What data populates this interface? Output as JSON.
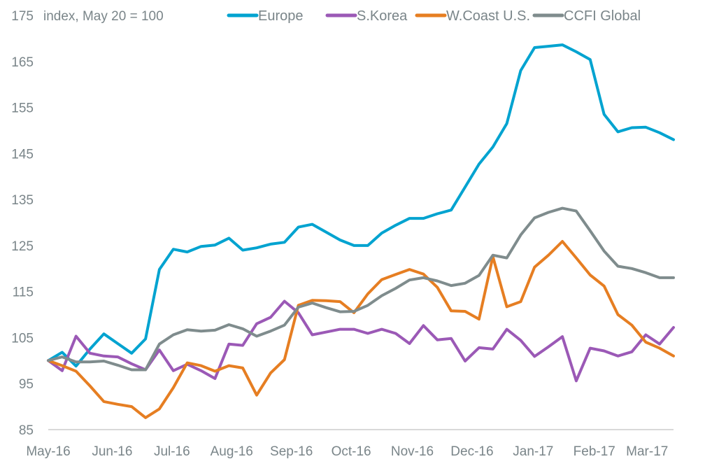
{
  "chart_data": {
    "type": "line",
    "title": "",
    "unit_label": "index, May 20 = 100",
    "xlabel": "",
    "ylabel": "index, May 20 = 100",
    "ylim": [
      85,
      175
    ],
    "yticks": [
      85,
      95,
      105,
      115,
      125,
      135,
      145,
      155,
      165,
      175
    ],
    "x_count": 46,
    "x_ticks": [
      {
        "label": "May-16",
        "index": 0
      },
      {
        "label": "Jun-16",
        "index": 4.6
      },
      {
        "label": "Jul-16",
        "index": 8.9
      },
      {
        "label": "Aug-16",
        "index": 13.2
      },
      {
        "label": "Sep-16",
        "index": 17.5
      },
      {
        "label": "Oct-16",
        "index": 21.8
      },
      {
        "label": "Nov-16",
        "index": 26.2
      },
      {
        "label": "Dec-16",
        "index": 30.5
      },
      {
        "label": "Jan-17",
        "index": 34.9
      },
      {
        "label": "Feb-17",
        "index": 39.3
      },
      {
        "label": "Mar-17",
        "index": 43.1
      }
    ],
    "grid": false,
    "legend_position": "top",
    "series": [
      {
        "name": "Europe",
        "color": "#00a3d0",
        "values": [
          100,
          101.8,
          98.8,
          102.5,
          105.8,
          103.7,
          101.6,
          104.7,
          119.8,
          124.2,
          123.6,
          124.8,
          125.1,
          126.6,
          124.0,
          124.5,
          125.3,
          125.7,
          129.0,
          129.6,
          127.9,
          126.2,
          125.0,
          125.0,
          127.7,
          129.4,
          130.9,
          130.9,
          131.9,
          132.7,
          137.7,
          142.7,
          146.4,
          151.5,
          163.0,
          168.0,
          168.3,
          168.6,
          167.1,
          165.4,
          153.5,
          149.7,
          150.6,
          150.7,
          149.5,
          148.0
        ]
      },
      {
        "name": "S.Korea",
        "color": "#9b59b6",
        "values": [
          100,
          97.8,
          105.3,
          101.6,
          101.0,
          100.8,
          99.3,
          98.0,
          102.3,
          97.8,
          99.2,
          97.8,
          96.1,
          103.6,
          103.3,
          108.0,
          109.4,
          112.9,
          110.4,
          105.6,
          106.2,
          106.8,
          106.8,
          105.9,
          106.8,
          105.9,
          103.7,
          107.6,
          104.5,
          104.8,
          99.9,
          102.8,
          102.5,
          106.8,
          104.4,
          100.9,
          103.0,
          105.2,
          95.6,
          102.7,
          102.1,
          101.0,
          101.9,
          105.6,
          103.6,
          107.2
        ]
      },
      {
        "name": "W.Coast U.S.",
        "color": "#e67e22",
        "values": [
          100,
          98.9,
          97.7,
          94.5,
          91.1,
          90.5,
          90.0,
          87.6,
          89.5,
          94.1,
          99.5,
          98.9,
          97.7,
          98.9,
          98.4,
          92.5,
          97.3,
          100.2,
          112.0,
          113.1,
          113.0,
          112.8,
          110.4,
          114.5,
          117.6,
          118.7,
          119.8,
          118.8,
          115.9,
          110.8,
          110.7,
          109.0,
          122.6,
          111.7,
          112.8,
          120.3,
          122.9,
          125.9,
          122.3,
          118.6,
          116.2,
          110.0,
          107.7,
          104.0,
          102.7,
          101.0
        ]
      },
      {
        "name": "CCFI Global",
        "color": "#7f8c8d",
        "values": [
          100,
          100.8,
          99.7,
          99.7,
          99.9,
          99.0,
          98.0,
          98.0,
          103.6,
          105.6,
          106.7,
          106.4,
          106.6,
          107.8,
          106.9,
          105.3,
          106.4,
          107.7,
          111.6,
          112.5,
          111.5,
          110.6,
          110.7,
          112.0,
          114.1,
          115.7,
          117.5,
          118.0,
          117.3,
          116.3,
          116.8,
          118.5,
          122.9,
          122.3,
          127.3,
          131.0,
          132.2,
          133.1,
          132.5,
          128.2,
          123.8,
          120.5,
          120.0,
          119.1,
          118.0,
          118.0
        ]
      }
    ]
  }
}
